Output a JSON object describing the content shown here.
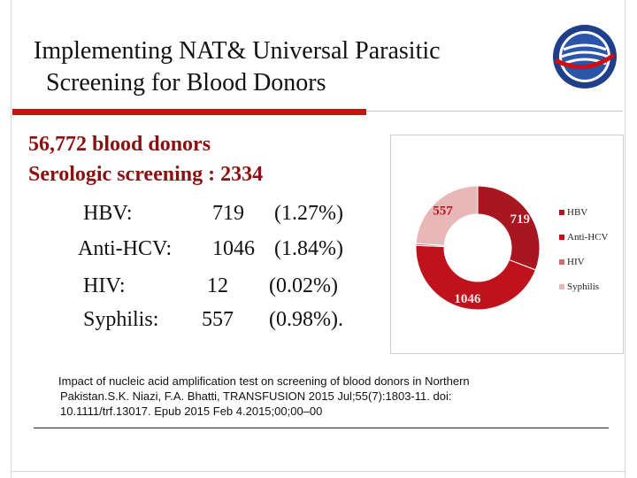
{
  "slide": {
    "title_line1": "Implementing NAT& Universal Parasitic",
    "title_line2": "Screening for Blood Donors",
    "lead_line1": "56,772 blood  donors",
    "lead_line2": "Serologic screening : 2334",
    "rows": [
      {
        "name": "HBV:",
        "count": "719",
        "pct": "(1.27%)"
      },
      {
        "name": "Anti-HCV:",
        "count": "1046",
        "pct": "(1.84%)"
      },
      {
        "name": "HIV:",
        "count": "12",
        "pct": "(0.02%)"
      },
      {
        "name": "Syphilis:",
        "count": "557",
        "pct": "(0.98%)."
      }
    ],
    "citation_line1": "Impact of nucleic acid amplification test on screening of blood donors in Northern",
    "citation_line2": "Pakistan.S.K. Niazi, F.A. Bhatti, TRANSFUSION 2015 Jul;55(7):1803-11. doi:",
    "citation_line3": "10.1111/trf.13017. Epub 2015 Feb 4.2015;00;00–00"
  },
  "chart_data": {
    "type": "pie",
    "subtype": "donut",
    "categories": [
      "HBV",
      "Anti-HCV",
      "HIV",
      "Syphilis"
    ],
    "values": [
      719,
      1046,
      12,
      557
    ],
    "data_labels": [
      "719",
      "1046",
      "",
      "557"
    ],
    "colors": [
      "#a81620",
      "#c0121c",
      "#d26a6e",
      "#e8b8b8"
    ],
    "legend_position": "right"
  }
}
